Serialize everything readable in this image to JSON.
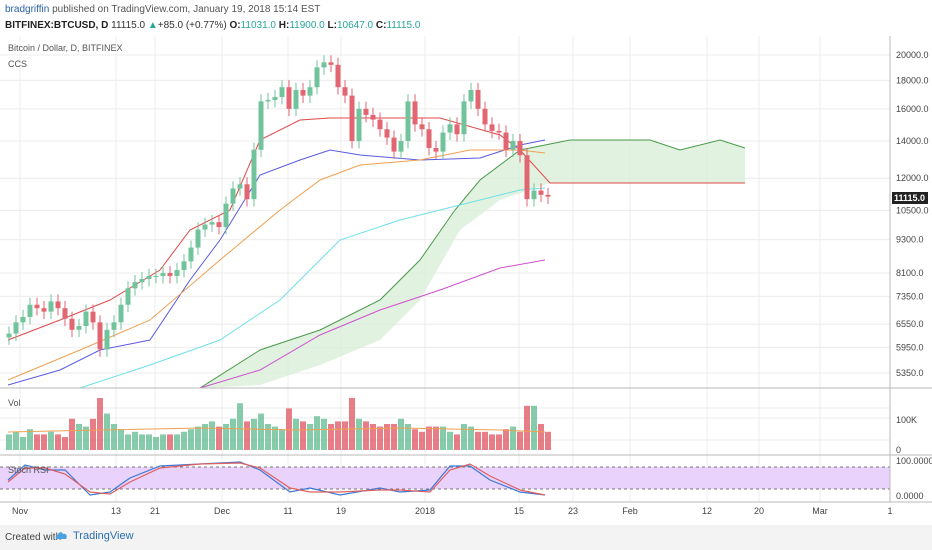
{
  "header": {
    "author": "bradgriffin",
    "published": "published on TradingView.com, January 19, 2018 15:14 EST",
    "symbol": "BITFINEX:BTCUSD, D",
    "last": "11115.0",
    "change": "+85.0 (+0.77%)",
    "open_label": "O:",
    "open": "11031.0",
    "high_label": "H:",
    "high": "11900.0",
    "low_label": "L:",
    "low": "10647.0",
    "close_label": "C:",
    "close": "11115.0"
  },
  "chart_data": {
    "type": "candlestick",
    "title": "Bitcoin / Dollar, D, BITFINEX",
    "overlay_label": "CCS",
    "price_scale": "log",
    "price_ticks": [
      5350.0,
      5950.0,
      6550.0,
      7350.0,
      8100.0,
      9300.0,
      10500.0,
      12000.0,
      14000.0,
      16000.0,
      18000.0,
      20000.0
    ],
    "last_price_label": "11115.0",
    "x_ticks": [
      "Nov",
      "13",
      "21",
      "Dec",
      "11",
      "19",
      "2018",
      "15",
      "23",
      "Feb",
      "12",
      "20",
      "Mar",
      "1"
    ],
    "grid": true,
    "colors": {
      "up": "#71c39c",
      "down": "#e26672",
      "grid": "#ececec",
      "cloud": "#d9efd9",
      "cloud_edge": "#4a9a4a",
      "tenkan": "#5a5ae0",
      "kijun": "#e04848",
      "ema_orange": "#f0a050",
      "ema_cyan": "#6de0e8",
      "sma_magenta": "#d050d0",
      "stoch_k": "#3a79d6",
      "stoch_d": "#e06060",
      "rsi_band": "#e9d2fb"
    },
    "candles_summary": "Daily BTC/USD from ~Nov 2017 to Jan 19 2018; rally from ~6000 to ~19500 peak in mid-December, then decline to ~11115.",
    "volume": {
      "label": "Vol",
      "ticks": [
        "100K",
        "0"
      ]
    },
    "stoch_rsi": {
      "label": "Stoch RSI",
      "ticks": [
        "100.0000",
        "0.0000"
      ]
    }
  },
  "footer": {
    "created": "Created with",
    "brand": "TradingView"
  }
}
